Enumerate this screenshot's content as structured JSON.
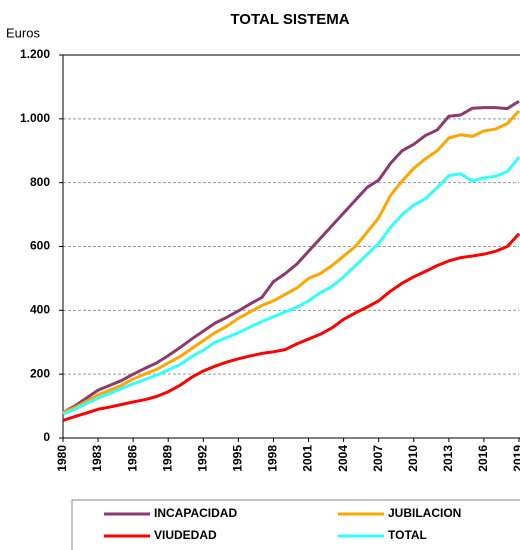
{
  "chart_data": {
    "type": "line",
    "title": "TOTAL SISTEMA",
    "ylabel": "Euros",
    "x": [
      1980,
      1981,
      1982,
      1983,
      1984,
      1985,
      1986,
      1987,
      1988,
      1989,
      1990,
      1991,
      1992,
      1993,
      1994,
      1995,
      1996,
      1997,
      1998,
      1999,
      2000,
      2001,
      2002,
      2003,
      2004,
      2005,
      2006,
      2007,
      2008,
      2009,
      2010,
      2011,
      2012,
      2013,
      2014,
      2015,
      2016,
      2017,
      2018,
      2019
    ],
    "xlim": [
      1980,
      2019
    ],
    "xticks": [
      1980,
      1983,
      1986,
      1989,
      1992,
      1995,
      1998,
      2001,
      2004,
      2007,
      2010,
      2013,
      2016,
      2019
    ],
    "ylim": [
      0,
      1200
    ],
    "yticks": [
      0,
      200,
      400,
      600,
      800,
      {
        "value": 1000,
        "label": "1.000"
      },
      {
        "value": 1200,
        "label": "1.200"
      }
    ],
    "grid": true,
    "legend": "bottom",
    "series": [
      {
        "name": "INCAPACIDAD",
        "color": "#8b3a6e",
        "values": [
          80,
          100,
          125,
          150,
          165,
          180,
          200,
          218,
          235,
          258,
          283,
          310,
          335,
          360,
          378,
          398,
          420,
          440,
          490,
          515,
          545,
          585,
          625,
          665,
          705,
          745,
          785,
          808,
          860,
          900,
          920,
          948,
          965,
          1008,
          1012,
          1033,
          1035,
          1035,
          1032,
          1055
        ]
      },
      {
        "name": "JUBILACION",
        "color": "#ffa500",
        "values": [
          80,
          95,
          115,
          135,
          150,
          165,
          185,
          200,
          215,
          235,
          255,
          280,
          305,
          330,
          350,
          375,
          395,
          415,
          430,
          450,
          470,
          500,
          515,
          540,
          570,
          600,
          645,
          690,
          760,
          805,
          845,
          875,
          900,
          940,
          950,
          945,
          962,
          968,
          985,
          1025
        ]
      },
      {
        "name": "VIUDEDAD",
        "color": "#ff0000",
        "values": [
          55,
          67,
          78,
          90,
          97,
          105,
          113,
          120,
          130,
          145,
          165,
          190,
          210,
          225,
          238,
          248,
          257,
          265,
          270,
          277,
          295,
          310,
          325,
          345,
          372,
          392,
          410,
          430,
          460,
          485,
          505,
          522,
          540,
          555,
          565,
          570,
          576,
          585,
          600,
          640
        ]
      },
      {
        "name": "TOTAL",
        "color": "#33ffff",
        "values": [
          75,
          90,
          108,
          125,
          140,
          155,
          170,
          183,
          197,
          213,
          230,
          255,
          275,
          300,
          315,
          330,
          348,
          365,
          380,
          395,
          410,
          430,
          455,
          475,
          505,
          540,
          575,
          610,
          660,
          700,
          730,
          750,
          785,
          822,
          828,
          805,
          815,
          820,
          835,
          880
        ]
      }
    ]
  }
}
